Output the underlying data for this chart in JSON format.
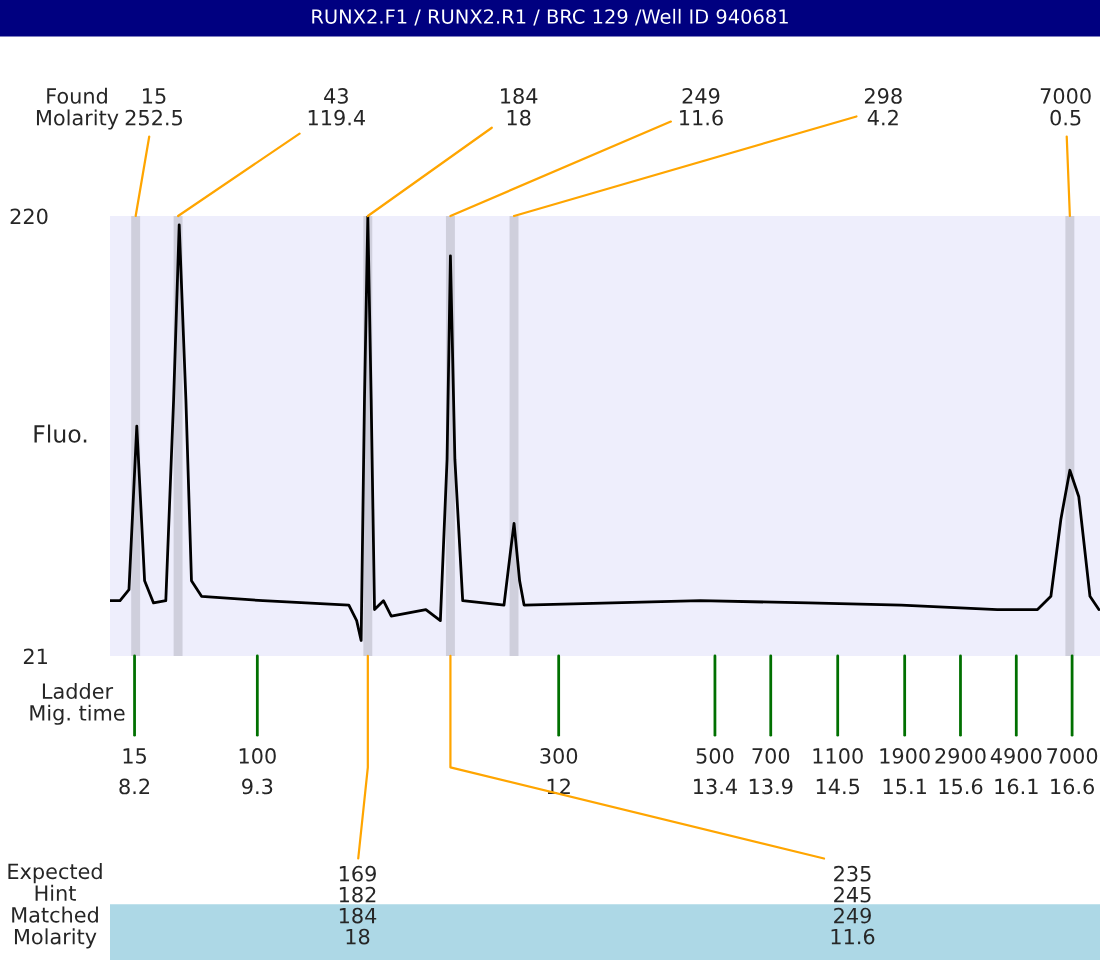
{
  "chart_data": {
    "type": "line",
    "title": "RUNX2.F1 / RUNX2.R1 / BRC 129 /Well ID 940681",
    "ylabel": "Fluo.",
    "x": [
      7.98,
      8.07,
      8.15,
      8.22,
      8.29,
      8.37,
      8.48,
      8.55,
      8.6,
      8.66,
      8.71,
      8.8,
      9.35,
      10.12,
      10.19,
      10.23,
      10.26,
      10.29,
      10.32,
      10.35,
      10.43,
      10.5,
      10.81,
      10.94,
      11.0,
      11.03,
      11.07,
      11.14,
      11.51,
      11.57,
      11.6,
      11.65,
      11.69,
      12.48,
      13.27,
      14.24,
      15.07,
      15.93,
      16.29,
      16.41,
      16.5,
      16.58,
      16.66,
      16.76,
      16.84
    ],
    "series": [
      {
        "color": "#000000",
        "values": [
          46,
          46,
          51,
          125,
          55,
          45,
          46,
          137,
          216,
          137,
          55,
          48,
          46,
          44,
          37,
          28,
          137,
          220,
          137,
          42,
          46,
          39,
          42,
          37,
          110,
          202,
          110,
          46,
          44,
          69,
          81,
          55,
          44,
          45,
          46,
          45,
          44,
          42,
          42,
          48,
          83,
          105,
          93,
          48,
          42
        ]
      }
    ],
    "xlim": [
      7.98,
      16.85
    ],
    "ylim": [
      21,
      220
    ],
    "yticks": [
      21,
      220
    ],
    "xticks": [
      8.2,
      9.3,
      12,
      13.4,
      13.9,
      14.5,
      15.1,
      15.6,
      16.1,
      16.6
    ],
    "bands": [
      {
        "axis": "x",
        "from": 8.17,
        "to": 8.25,
        "label": "15\n252.5",
        "color": "#cfcfdc"
      },
      {
        "axis": "x",
        "from": 8.55,
        "to": 8.63,
        "label": "43\n119.4",
        "color": "#cfcfdc"
      },
      {
        "axis": "x",
        "from": 10.25,
        "to": 10.33,
        "label": "184\n18",
        "color": "#cfcfdc"
      },
      {
        "axis": "x",
        "from": 10.99,
        "to": 11.07,
        "label": "249\n11.6",
        "color": "#cfcfdc"
      },
      {
        "axis": "x",
        "from": 11.56,
        "to": 11.64,
        "label": "298\n4.2",
        "color": "#cfcfdc"
      },
      {
        "axis": "x",
        "from": 16.54,
        "to": 16.62,
        "label": "7000\n0.5",
        "color": "#cfcfdc"
      }
    ],
    "annotations": [
      "Found\nMolarity",
      "Ladder\nMig. time",
      "Expected\nHint\nMatched\nMolarity",
      "15",
      "100",
      "300",
      "500",
      "700",
      "1100",
      "1900",
      "2900",
      "4900",
      "7000",
      {
        "text": "169\n182\n184\n18",
        "x": 10.29,
        "y": 21
      },
      {
        "text": "235\n245\n249\n11.6",
        "x": 11.03,
        "y": 21
      }
    ],
    "grid": false,
    "legend": false,
    "line_style": "solid",
    "marker": "none"
  }
}
